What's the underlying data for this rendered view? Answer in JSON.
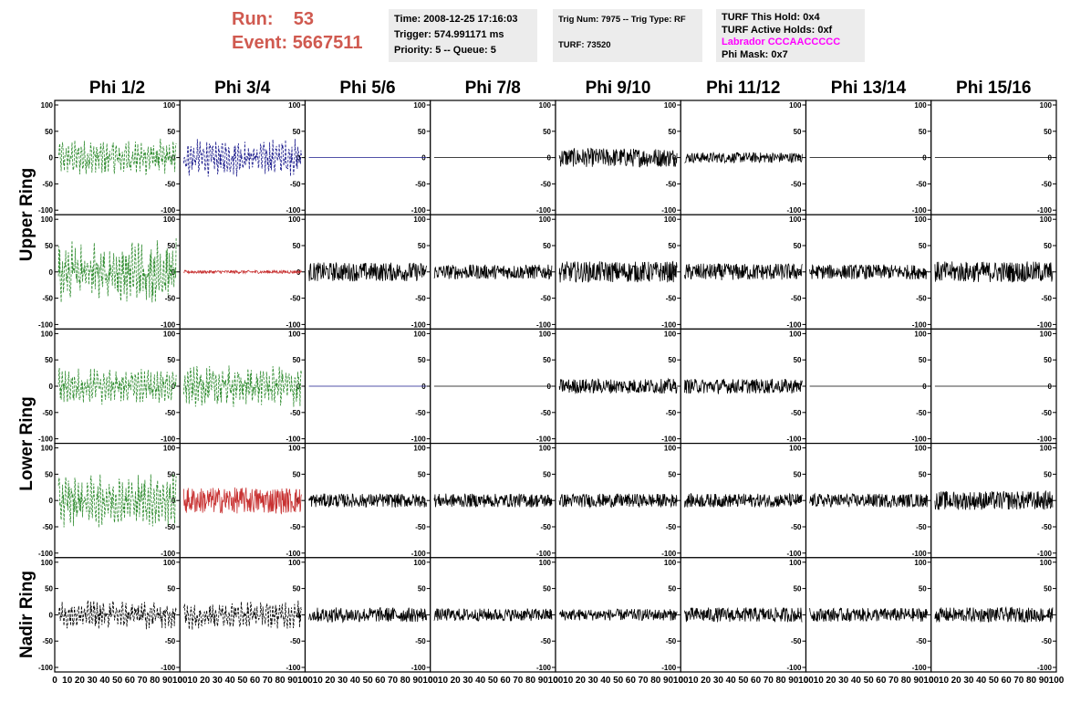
{
  "header": {
    "run_label": "Run:",
    "run_value": "53",
    "event_label": "Event:",
    "event_value": "5667511",
    "time": "Time: 2008-12-25 17:16:03",
    "trigger": "Trigger: 574.991171 ms",
    "priority": "Priority: 5 -- Queue: 5",
    "trig_num": "Trig Num: 7975 -- Trig Type: RF",
    "turf": "TURF: 73520",
    "turf_this_hold": "TURF This Hold: 0x4",
    "turf_active_holds": "TURF Active Holds: 0xf",
    "labrador": "Labrador CCCAACCCCC",
    "phi_mask": "Phi Mask: 0x7"
  },
  "columns": [
    "Phi 1/2",
    "Phi 3/4",
    "Phi 5/6",
    "Phi 7/8",
    "Phi 9/10",
    "Phi 11/12",
    "Phi 13/14",
    "Phi 15/16"
  ],
  "row_groups": [
    "Upper Ring",
    "Lower Ring",
    "Nadir Ring"
  ],
  "colors": {
    "green": "#2e8b2e",
    "blue": "#1a1a8c",
    "red": "#c83232",
    "black": "#000000",
    "run_text": "#d05a50",
    "labrador_text": "#ff00ff"
  },
  "chart_data": {
    "type": "line",
    "grid_rows": 5,
    "grid_cols": 8,
    "ylim": [
      -100,
      100
    ],
    "xlim": [
      0,
      100
    ],
    "y_ticks": [
      "100",
      "50",
      "0",
      "-50",
      "-100"
    ],
    "x_tick_labels": [
      "0",
      "10",
      "20",
      "30",
      "40",
      "50",
      "60",
      "70",
      "80",
      "90",
      "100"
    ],
    "panel_amplitude": [
      [
        28,
        28,
        0,
        0,
        18,
        10,
        0,
        0
      ],
      [
        50,
        3,
        18,
        14,
        20,
        16,
        14,
        20
      ],
      [
        28,
        32,
        0,
        0,
        14,
        14,
        0,
        0
      ],
      [
        40,
        25,
        13,
        13,
        13,
        13,
        13,
        18
      ],
      [
        22,
        22,
        14,
        12,
        11,
        14,
        13,
        14
      ]
    ],
    "panel_style": [
      [
        "green-dash",
        "blue-dash",
        "blue-flat",
        "black-flat",
        "black",
        "black",
        "black-flat",
        "black-flat"
      ],
      [
        "green-dash",
        "red",
        "black",
        "black",
        "black",
        "black",
        "black",
        "black"
      ],
      [
        "green-dash",
        "green-dash",
        "blue-flat",
        "black-flat",
        "black",
        "black",
        "black-flat",
        "black-flat"
      ],
      [
        "green-dash",
        "red",
        "black",
        "black",
        "black",
        "black",
        "black",
        "black"
      ],
      [
        "black-dash",
        "black-dash",
        "black",
        "black",
        "black",
        "black",
        "black",
        "black"
      ]
    ]
  }
}
